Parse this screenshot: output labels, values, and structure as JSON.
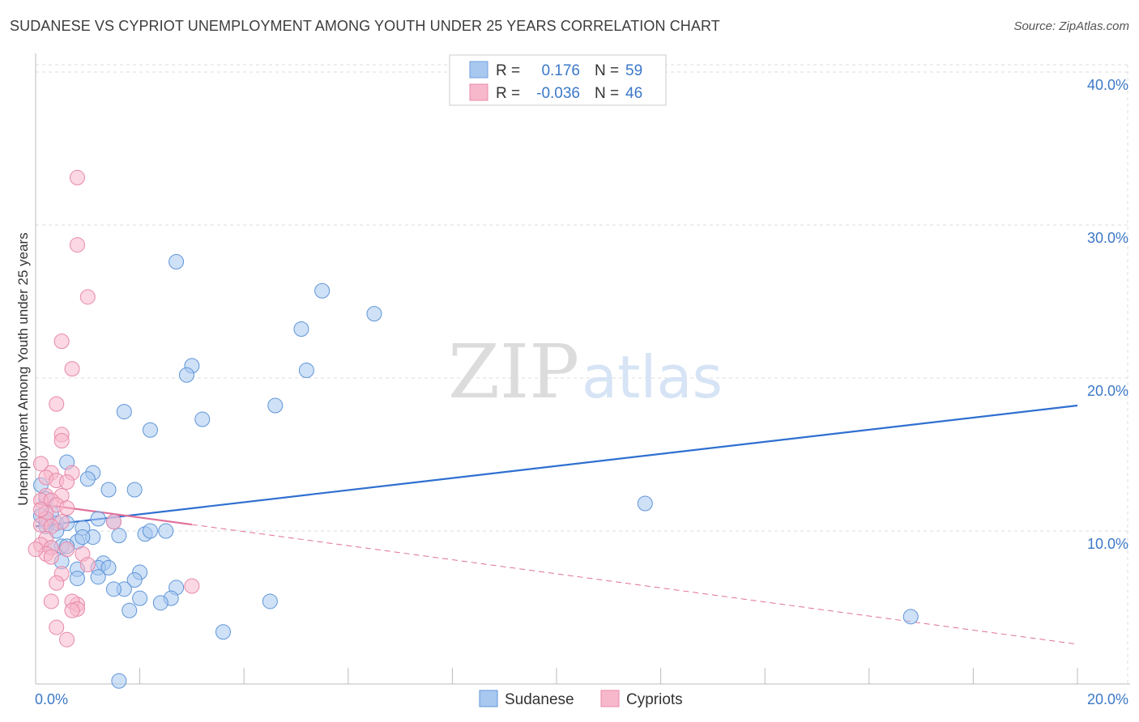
{
  "title": "SUDANESE VS CYPRIOT UNEMPLOYMENT AMONG YOUTH UNDER 25 YEARS CORRELATION CHART",
  "source": "Source: ZipAtlas.com",
  "watermark": {
    "zip": "ZIP",
    "atlas": "atlas"
  },
  "chart_data": {
    "type": "scatter",
    "xlabel": "",
    "ylabel": "Unemployment Among Youth under 25 years",
    "xlim": [
      0,
      20
    ],
    "ylim": [
      0,
      40
    ],
    "x_tick_labels": [
      "0.0%",
      "20.0%"
    ],
    "y_ticks": [
      10,
      20,
      30,
      40
    ],
    "y_tick_labels": [
      "10.0%",
      "20.0%",
      "30.0%",
      "40.0%"
    ],
    "grid": true,
    "legend_position": "top-center",
    "legend": [
      {
        "r_label": "R =",
        "r_value": "0.176",
        "n_label": "N =",
        "n_value": "59",
        "color": "#a8c8f0",
        "stroke": "#6fa0e0"
      },
      {
        "r_label": "R =",
        "r_value": "-0.036",
        "n_label": "N =",
        "n_value": "46",
        "color": "#f8b8cc",
        "stroke": "#e888a8"
      }
    ],
    "series": [
      {
        "name": "Sudanese",
        "color": "#a8c8f0",
        "stroke": "#5f95d8",
        "trend_color": "#2f6fd0",
        "trend": {
          "x0": 0.0,
          "y0": 10.3,
          "x1": 20.0,
          "y1": 18.2,
          "dashed_from": null
        },
        "points": [
          [
            2.7,
            27.6
          ],
          [
            5.5,
            25.7
          ],
          [
            6.5,
            24.2
          ],
          [
            5.1,
            23.2
          ],
          [
            3.0,
            20.8
          ],
          [
            2.9,
            20.2
          ],
          [
            5.2,
            20.5
          ],
          [
            4.6,
            18.2
          ],
          [
            1.7,
            17.8
          ],
          [
            3.2,
            17.3
          ],
          [
            2.2,
            16.6
          ],
          [
            11.7,
            11.8
          ],
          [
            0.6,
            14.5
          ],
          [
            1.1,
            13.8
          ],
          [
            1.0,
            13.4
          ],
          [
            1.4,
            12.7
          ],
          [
            1.9,
            12.7
          ],
          [
            0.1,
            13.0
          ],
          [
            0.2,
            12.1
          ],
          [
            0.3,
            11.2
          ],
          [
            0.1,
            11.0
          ],
          [
            0.2,
            10.6
          ],
          [
            0.4,
            10.5
          ],
          [
            0.6,
            10.5
          ],
          [
            0.9,
            10.2
          ],
          [
            1.2,
            10.8
          ],
          [
            1.5,
            10.6
          ],
          [
            0.5,
            9.0
          ],
          [
            0.8,
            9.3
          ],
          [
            1.1,
            9.6
          ],
          [
            1.6,
            9.7
          ],
          [
            2.1,
            9.8
          ],
          [
            2.5,
            10.0
          ],
          [
            2.2,
            10.0
          ],
          [
            0.9,
            9.6
          ],
          [
            0.3,
            8.9
          ],
          [
            0.5,
            8.0
          ],
          [
            0.8,
            7.5
          ],
          [
            1.3,
            7.9
          ],
          [
            1.2,
            7.6
          ],
          [
            1.4,
            7.6
          ],
          [
            0.8,
            6.9
          ],
          [
            1.2,
            7.0
          ],
          [
            2.0,
            7.3
          ],
          [
            1.9,
            6.8
          ],
          [
            1.7,
            6.2
          ],
          [
            1.5,
            6.2
          ],
          [
            2.7,
            6.3
          ],
          [
            2.6,
            5.6
          ],
          [
            2.0,
            5.6
          ],
          [
            2.4,
            5.3
          ],
          [
            1.8,
            4.8
          ],
          [
            4.5,
            5.4
          ],
          [
            3.6,
            3.4
          ],
          [
            16.8,
            4.4
          ],
          [
            1.6,
            0.2
          ],
          [
            0.6,
            9.0
          ],
          [
            0.2,
            10.3
          ],
          [
            0.4,
            10.0
          ]
        ]
      },
      {
        "name": "Cypriots",
        "color": "#f8b8cc",
        "stroke": "#e888a8",
        "trend_color": "#e0709a",
        "trend": {
          "x0": 0.0,
          "y0": 11.8,
          "x1": 20.0,
          "y1": 2.6,
          "dashed_from": 3.0
        },
        "points": [
          [
            0.8,
            33.1
          ],
          [
            0.8,
            28.7
          ],
          [
            1.0,
            25.3
          ],
          [
            0.5,
            22.4
          ],
          [
            0.7,
            20.6
          ],
          [
            0.4,
            18.3
          ],
          [
            0.5,
            16.3
          ],
          [
            0.5,
            15.9
          ],
          [
            0.1,
            14.4
          ],
          [
            0.3,
            13.8
          ],
          [
            0.7,
            13.8
          ],
          [
            0.2,
            13.5
          ],
          [
            0.4,
            13.3
          ],
          [
            0.6,
            13.2
          ],
          [
            0.2,
            12.3
          ],
          [
            0.5,
            12.3
          ],
          [
            0.1,
            12.0
          ],
          [
            0.3,
            12.0
          ],
          [
            0.4,
            11.7
          ],
          [
            0.6,
            11.5
          ],
          [
            0.2,
            11.2
          ],
          [
            0.2,
            10.8
          ],
          [
            0.5,
            10.6
          ],
          [
            0.1,
            10.4
          ],
          [
            0.3,
            10.3
          ],
          [
            1.5,
            10.6
          ],
          [
            0.2,
            9.5
          ],
          [
            0.1,
            9.1
          ],
          [
            0.3,
            8.9
          ],
          [
            0.6,
            8.8
          ],
          [
            0.2,
            8.5
          ],
          [
            0.3,
            8.3
          ],
          [
            0.9,
            8.5
          ],
          [
            1.0,
            7.8
          ],
          [
            0.5,
            7.2
          ],
          [
            0.4,
            6.6
          ],
          [
            3.0,
            6.4
          ],
          [
            0.3,
            5.4
          ],
          [
            0.8,
            5.2
          ],
          [
            0.7,
            5.4
          ],
          [
            0.8,
            4.9
          ],
          [
            0.7,
            4.8
          ],
          [
            0.4,
            3.7
          ],
          [
            0.6,
            2.9
          ],
          [
            0.0,
            8.8
          ],
          [
            0.1,
            11.4
          ]
        ]
      }
    ]
  }
}
